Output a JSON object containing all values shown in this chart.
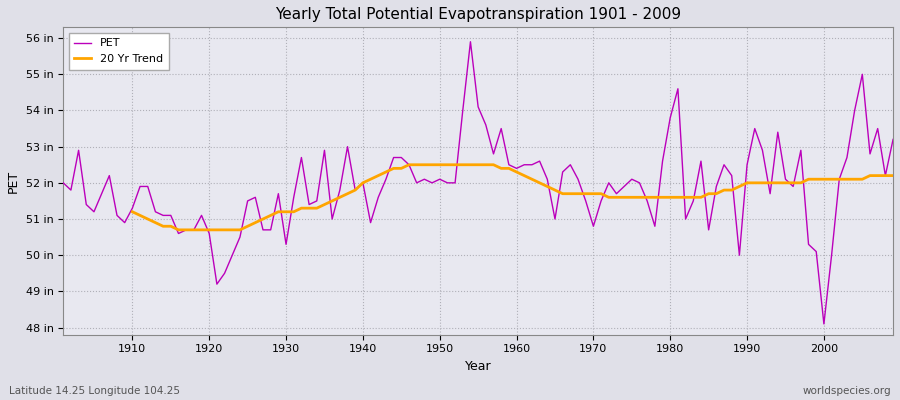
{
  "title": "Yearly Total Potential Evapotranspiration 1901 - 2009",
  "xlabel": "Year",
  "ylabel": "PET",
  "subtitle": "Latitude 14.25 Longitude 104.25",
  "watermark": "worldspecies.org",
  "pet_color": "#bb00bb",
  "trend_color": "#ffa500",
  "fig_facecolor": "#e0e0e8",
  "ax_facecolor": "#e8e8f0",
  "ylim": [
    47.8,
    56.3
  ],
  "ytick_labels": [
    "48 in",
    "49 in",
    "50 in",
    "51 in",
    "52 in",
    "53 in",
    "54 in",
    "55 in",
    "56 in"
  ],
  "ytick_values": [
    48,
    49,
    50,
    51,
    52,
    53,
    54,
    55,
    56
  ],
  "xticks": [
    1910,
    1920,
    1930,
    1940,
    1950,
    1960,
    1970,
    1980,
    1990,
    2000
  ],
  "years": [
    1901,
    1902,
    1903,
    1904,
    1905,
    1906,
    1907,
    1908,
    1909,
    1910,
    1911,
    1912,
    1913,
    1914,
    1915,
    1916,
    1917,
    1918,
    1919,
    1920,
    1921,
    1922,
    1923,
    1924,
    1925,
    1926,
    1927,
    1928,
    1929,
    1930,
    1931,
    1932,
    1933,
    1934,
    1935,
    1936,
    1937,
    1938,
    1939,
    1940,
    1941,
    1942,
    1943,
    1944,
    1945,
    1946,
    1947,
    1948,
    1949,
    1950,
    1951,
    1952,
    1953,
    1954,
    1955,
    1956,
    1957,
    1958,
    1959,
    1960,
    1961,
    1962,
    1963,
    1964,
    1965,
    1966,
    1967,
    1968,
    1969,
    1970,
    1971,
    1972,
    1973,
    1974,
    1975,
    1976,
    1977,
    1978,
    1979,
    1980,
    1981,
    1982,
    1983,
    1984,
    1985,
    1986,
    1987,
    1988,
    1989,
    1990,
    1991,
    1992,
    1993,
    1994,
    1995,
    1996,
    1997,
    1998,
    1999,
    2000,
    2001,
    2002,
    2003,
    2004,
    2005,
    2006,
    2007,
    2008,
    2009
  ],
  "pet_values": [
    52.0,
    51.8,
    52.9,
    51.4,
    51.2,
    51.7,
    52.2,
    51.1,
    50.9,
    51.3,
    51.9,
    51.9,
    51.2,
    51.1,
    51.1,
    50.6,
    50.7,
    50.7,
    51.1,
    50.6,
    49.2,
    49.5,
    50.0,
    50.5,
    51.5,
    51.6,
    50.7,
    50.7,
    51.7,
    50.3,
    51.6,
    52.7,
    51.4,
    51.5,
    52.9,
    51.0,
    51.8,
    53.0,
    51.8,
    52.0,
    50.9,
    51.6,
    52.1,
    52.7,
    52.7,
    52.5,
    52.0,
    52.1,
    52.0,
    52.1,
    52.0,
    52.0,
    54.0,
    55.9,
    54.1,
    53.6,
    52.8,
    53.5,
    52.5,
    52.4,
    52.5,
    52.5,
    52.6,
    52.1,
    51.0,
    52.3,
    52.5,
    52.1,
    51.5,
    50.8,
    51.5,
    52.0,
    51.7,
    51.9,
    52.1,
    52.0,
    51.5,
    50.8,
    52.6,
    53.8,
    54.6,
    51.0,
    51.5,
    52.6,
    50.7,
    51.9,
    52.5,
    52.2,
    50.0,
    52.5,
    53.5,
    52.9,
    51.7,
    53.4,
    52.1,
    51.9,
    52.9,
    50.3,
    50.1,
    48.1,
    50.0,
    52.1,
    52.7,
    54.0,
    55.0,
    52.8,
    53.5,
    52.2,
    53.2
  ],
  "trend_values": [
    null,
    null,
    null,
    null,
    null,
    null,
    null,
    null,
    null,
    51.2,
    51.1,
    51.0,
    50.9,
    50.8,
    50.8,
    50.7,
    50.7,
    50.7,
    50.7,
    50.7,
    50.7,
    50.7,
    50.7,
    50.7,
    50.8,
    50.9,
    51.0,
    51.1,
    51.2,
    51.2,
    51.2,
    51.3,
    51.3,
    51.3,
    51.4,
    51.5,
    51.6,
    51.7,
    51.8,
    52.0,
    52.1,
    52.2,
    52.3,
    52.4,
    52.4,
    52.5,
    52.5,
    52.5,
    52.5,
    52.5,
    52.5,
    52.5,
    52.5,
    52.5,
    52.5,
    52.5,
    52.5,
    52.4,
    52.4,
    52.3,
    52.2,
    52.1,
    52.0,
    51.9,
    51.8,
    51.7,
    51.7,
    51.7,
    51.7,
    51.7,
    51.7,
    51.6,
    51.6,
    51.6,
    51.6,
    51.6,
    51.6,
    51.6,
    51.6,
    51.6,
    51.6,
    51.6,
    51.6,
    51.6,
    51.7,
    51.7,
    51.8,
    51.8,
    51.9,
    52.0,
    52.0,
    52.0,
    52.0,
    52.0,
    52.0,
    52.0,
    52.0,
    52.1,
    52.1,
    52.1,
    52.1,
    52.1,
    52.1,
    52.1,
    52.1,
    52.2,
    52.2,
    52.2,
    52.2
  ]
}
